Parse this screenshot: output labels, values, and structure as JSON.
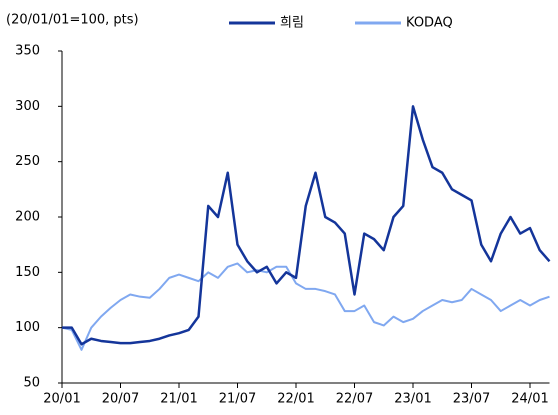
{
  "chart_data": {
    "type": "line",
    "subtitle": "(20/01/01=100, pts)",
    "categories": [
      "20/01",
      null,
      null,
      null,
      null,
      null,
      "20/07",
      null,
      null,
      null,
      null,
      null,
      "21/01",
      null,
      null,
      null,
      null,
      null,
      "21/07",
      null,
      null,
      null,
      null,
      null,
      "22/01",
      null,
      null,
      null,
      null,
      null,
      "22/07",
      null,
      null,
      null,
      null,
      null,
      "23/01",
      null,
      null,
      null,
      null,
      null,
      "23/07",
      null,
      null,
      null,
      null,
      null,
      "24/01",
      null,
      null
    ],
    "series": [
      {
        "name": "희림",
        "color": "#14359a",
        "values": [
          100,
          100,
          85,
          90,
          88,
          87,
          86,
          86,
          87,
          88,
          90,
          93,
          95,
          98,
          110,
          210,
          200,
          240,
          175,
          160,
          150,
          155,
          140,
          150,
          145,
          210,
          240,
          200,
          195,
          185,
          130,
          185,
          180,
          170,
          200,
          210,
          300,
          270,
          245,
          240,
          225,
          220,
          215,
          175,
          160,
          185,
          200,
          185,
          190,
          170,
          160
        ]
      },
      {
        "name": "KODAQ",
        "color": "#80a8f0",
        "values": [
          100,
          98,
          80,
          100,
          110,
          118,
          125,
          130,
          128,
          127,
          135,
          145,
          148,
          145,
          142,
          150,
          145,
          155,
          158,
          150,
          152,
          150,
          155,
          155,
          140,
          135,
          135,
          133,
          130,
          115,
          115,
          120,
          105,
          102,
          110,
          105,
          108,
          115,
          120,
          125,
          123,
          125,
          135,
          130,
          125,
          115,
          120,
          125,
          120,
          125,
          128
        ]
      }
    ],
    "ylim": [
      50,
      350
    ],
    "yticks": [
      50,
      100,
      150,
      200,
      250,
      300,
      350
    ],
    "grid": false,
    "legend": "top"
  }
}
